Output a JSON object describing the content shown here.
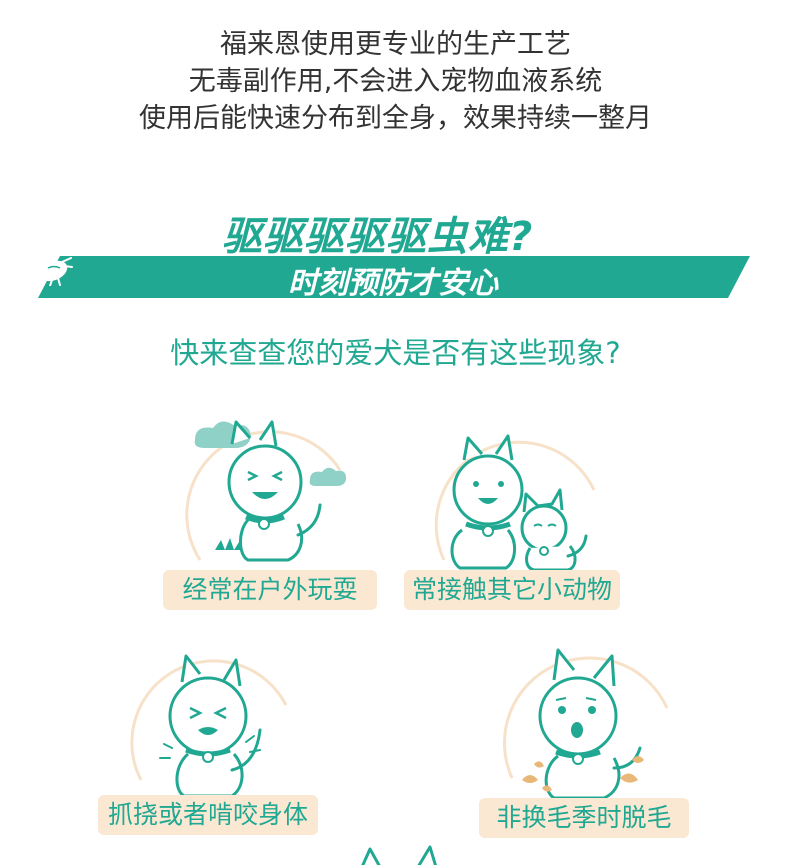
{
  "intro": {
    "line1": "福来恩使用更专业的生产工艺",
    "line2": "无毒副作用,不会进入宠物血液系统",
    "line3": "使用后能快速分布到全身，效果持续一整月"
  },
  "headline": "驱驱驱驱驱虫难?",
  "banner": {
    "text": "时刻预防才安心"
  },
  "question": "快来查查您的爱犬是否有这些现象?",
  "cards": [
    {
      "label": "经常在户外玩耍",
      "icon": "dog-outdoor-icon"
    },
    {
      "label": "常接触其它小动物",
      "icon": "dog-with-cat-icon"
    },
    {
      "label": "抓挠或者啃咬身体",
      "icon": "dog-scratching-icon"
    },
    {
      "label": "非换毛季时脱毛",
      "icon": "dog-shedding-icon"
    }
  ],
  "colors": {
    "accent": "#21a892",
    "label_bg": "#fbe8d3",
    "text": "#333333",
    "ring": "#f7e1c9",
    "fur": "#e9b777"
  }
}
